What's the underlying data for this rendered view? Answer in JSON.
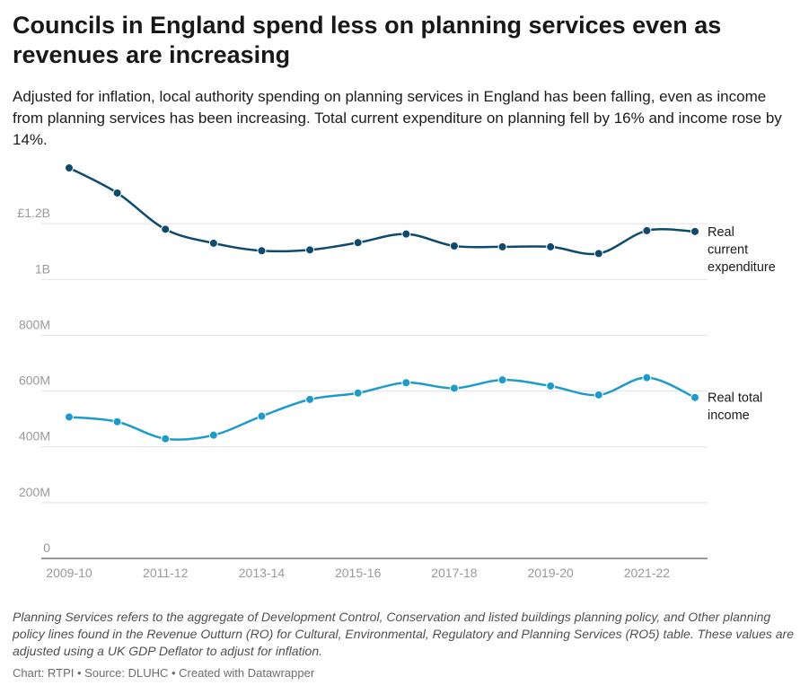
{
  "title": "Councils in England spend less on planning services even as revenues are increasing",
  "subtitle": "Adjusted for inflation, local authority spending on planning services in England has been falling, even as income from planning services has been increasing. Total current expenditure on planning fell by 16% and income rose by 14%.",
  "notes": "Planning Services refers to the aggregate of Development Control, Conservation and listed buildings planning policy, and Other planning policy lines found in the Revenue Outturn (RO) for Cultural, Environmental, Regulatory and Planning Services (RO5) table. These values are adjusted using a UK GDP Deflator to adjust for inflation.",
  "footer": "Chart: RTPI • Source: DLUHC • Created with Datawrapper",
  "chart_data": {
    "type": "line",
    "x": [
      "2009-10",
      "2010-11",
      "2011-12",
      "2012-13",
      "2013-14",
      "2014-15",
      "2015-16",
      "2016-17",
      "2017-18",
      "2018-19",
      "2019-20",
      "2020-21",
      "2021-22",
      "2022-23"
    ],
    "x_tick_labels": [
      "2009-10",
      "2011-12",
      "2013-14",
      "2015-16",
      "2017-18",
      "2019-20",
      "2021-22"
    ],
    "ylim": [
      0,
      1400000000
    ],
    "y_ticks": [
      0,
      200000000,
      400000000,
      600000000,
      800000000,
      1000000000,
      1200000000
    ],
    "y_tick_labels": [
      "0",
      "200M",
      "400M",
      "600M",
      "800M",
      "1B",
      "£1.2B"
    ],
    "grid": true,
    "legend": "inline-right",
    "series": [
      {
        "name": "Real current expenditure",
        "label_lines": [
          "Real",
          "current",
          "expenditure"
        ],
        "color": "#0d4a6e",
        "values": [
          1400000000,
          1310000000,
          1180000000,
          1130000000,
          1103000000,
          1106000000,
          1132000000,
          1163000000,
          1120000000,
          1117000000,
          1117000000,
          1093000000,
          1175000000,
          1172000000
        ]
      },
      {
        "name": "Real total income",
        "label_lines": [
          "Real total",
          "income"
        ],
        "color": "#1f9bc9",
        "values": [
          507000000,
          490000000,
          429000000,
          442000000,
          510000000,
          570000000,
          593000000,
          630000000,
          610000000,
          640000000,
          618000000,
          586000000,
          648000000,
          577000000
        ]
      }
    ]
  }
}
